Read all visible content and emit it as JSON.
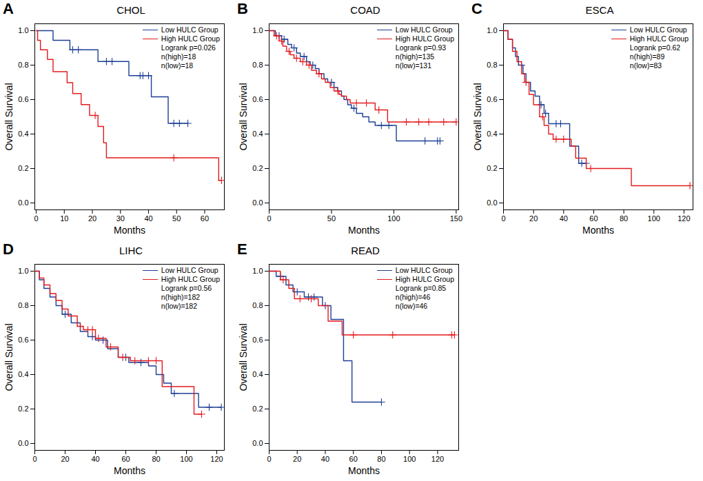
{
  "chart_data": [
    {
      "type": "line",
      "panel": "A",
      "title": "CHOL",
      "x_label": "Months",
      "y_label": "Overall Survival",
      "xlim": [
        -0.5,
        67
      ],
      "xticks": [
        0,
        10,
        20,
        30,
        40,
        50,
        60
      ],
      "ylim": [
        -0.04,
        1.04
      ],
      "yticks": [
        {
          "value": 0,
          "label": "0.0"
        },
        0.2,
        0.4,
        0.6,
        0.8,
        {
          "value": 1,
          "label": "1.0"
        }
      ],
      "legend": "topright",
      "marker": "plus",
      "line_style": "step",
      "annotations": [
        "Logrank p=0.026",
        "n(high)=18",
        "n(low)=18"
      ],
      "series": [
        {
          "name": "Low HULC Group",
          "color": "#1c3f95",
          "x": [
            0,
            6,
            12,
            22,
            33,
            41,
            47,
            54
          ],
          "values": [
            1,
            0.944,
            0.889,
            0.821,
            0.739,
            0.616,
            0.462,
            0.462
          ],
          "censored": [
            [
              13,
              0.889
            ],
            [
              15,
              0.889
            ],
            [
              25,
              0.821
            ],
            [
              27,
              0.821
            ],
            [
              37,
              0.739
            ],
            [
              38,
              0.739
            ],
            [
              40,
              0.739
            ],
            [
              49,
              0.462
            ],
            [
              51,
              0.462
            ],
            [
              54,
              0.462
            ]
          ]
        },
        {
          "name": "High HULC Group",
          "color": "#e41a1c",
          "x": [
            0,
            0.5,
            1.5,
            4,
            6,
            11,
            13,
            16,
            19,
            22,
            24,
            25,
            65,
            66
          ],
          "values": [
            1,
            0.944,
            0.889,
            0.833,
            0.762,
            0.698,
            0.635,
            0.571,
            0.508,
            0.444,
            0.349,
            0.262,
            0.131,
            0.131
          ],
          "censored": [
            [
              21,
              0.508
            ],
            [
              49,
              0.262
            ],
            [
              66,
              0.131
            ]
          ]
        }
      ]
    },
    {
      "type": "line",
      "panel": "B",
      "title": "COAD",
      "x_label": "Months",
      "y_label": "Overall Survival",
      "xlim": [
        0,
        152
      ],
      "xticks": [
        0,
        50,
        100,
        150
      ],
      "ylim": [
        -0.04,
        1.04
      ],
      "yticks": [
        {
          "value": 0,
          "label": "0.0"
        },
        0.2,
        0.4,
        0.6,
        0.8,
        {
          "value": 1,
          "label": "1.0"
        }
      ],
      "legend": "topright",
      "marker": "plus",
      "line_style": "step",
      "annotations": [
        "Logrank p=0.93",
        "n(high)=135",
        "n(low)=131"
      ],
      "series": [
        {
          "name": "Low HULC Group",
          "color": "#1c3f95",
          "x": [
            0,
            5,
            10,
            15,
            18,
            22,
            25,
            30,
            33,
            37,
            40,
            44,
            47,
            52,
            55,
            58,
            60,
            63,
            66,
            70,
            75,
            80,
            85,
            100,
            102,
            138
          ],
          "values": [
            1,
            0.97,
            0.95,
            0.92,
            0.9,
            0.87,
            0.85,
            0.82,
            0.8,
            0.78,
            0.75,
            0.72,
            0.7,
            0.67,
            0.65,
            0.62,
            0.6,
            0.57,
            0.55,
            0.52,
            0.5,
            0.47,
            0.45,
            0.45,
            0.36,
            0.36
          ],
          "censored": [
            [
              8,
              0.97
            ],
            [
              12,
              0.95
            ],
            [
              20,
              0.9
            ],
            [
              28,
              0.85
            ],
            [
              35,
              0.8
            ],
            [
              50,
              0.7
            ],
            [
              68,
              0.55
            ],
            [
              90,
              0.45
            ],
            [
              96,
              0.45
            ],
            [
              125,
              0.36
            ],
            [
              135,
              0.36
            ],
            [
              137,
              0.36
            ]
          ]
        },
        {
          "name": "High HULC Group",
          "color": "#e41a1c",
          "x": [
            0,
            4,
            8,
            11,
            14,
            17,
            20,
            25,
            30,
            34,
            38,
            42,
            45,
            49,
            52,
            56,
            58,
            62,
            65,
            85,
            95,
            150
          ],
          "values": [
            1,
            0.97,
            0.94,
            0.91,
            0.88,
            0.86,
            0.84,
            0.82,
            0.8,
            0.77,
            0.75,
            0.72,
            0.7,
            0.67,
            0.65,
            0.63,
            0.62,
            0.6,
            0.58,
            0.54,
            0.47,
            0.47
          ],
          "censored": [
            [
              6,
              0.97
            ],
            [
              10,
              0.94
            ],
            [
              16,
              0.88
            ],
            [
              22,
              0.84
            ],
            [
              27,
              0.82
            ],
            [
              32,
              0.8
            ],
            [
              40,
              0.75
            ],
            [
              55,
              0.65
            ],
            [
              70,
              0.58
            ],
            [
              78,
              0.58
            ],
            [
              88,
              0.54
            ],
            [
              110,
              0.47
            ],
            [
              120,
              0.47
            ],
            [
              128,
              0.47
            ],
            [
              140,
              0.47
            ],
            [
              150,
              0.47
            ]
          ]
        }
      ]
    },
    {
      "type": "line",
      "panel": "C",
      "title": "ESCA",
      "x_label": "Months",
      "y_label": "Overall Survival",
      "xlim": [
        0,
        126
      ],
      "xticks": [
        0,
        20,
        40,
        60,
        80,
        100,
        120
      ],
      "ylim": [
        -0.04,
        1.04
      ],
      "yticks": [
        {
          "value": 0,
          "label": "0.0"
        },
        0.2,
        0.4,
        0.6,
        0.8,
        {
          "value": 1,
          "label": "1.0"
        }
      ],
      "legend": "topright",
      "marker": "plus",
      "line_style": "step",
      "annotations": [
        "Logrank p=0.62",
        "n(high)=89",
        "n(low)=83"
      ],
      "series": [
        {
          "name": "Low HULC Group",
          "color": "#1c3f95",
          "x": [
            0,
            3,
            6,
            8,
            10,
            13,
            15,
            18,
            21,
            24,
            27,
            30,
            44,
            50,
            55
          ],
          "values": [
            1,
            0.95,
            0.9,
            0.85,
            0.8,
            0.75,
            0.7,
            0.65,
            0.62,
            0.57,
            0.52,
            0.46,
            0.33,
            0.23,
            0.23
          ],
          "censored": [
            [
              12,
              0.8
            ],
            [
              25,
              0.57
            ],
            [
              28,
              0.52
            ],
            [
              35,
              0.46
            ],
            [
              38,
              0.46
            ],
            [
              52,
              0.23
            ],
            [
              55,
              0.23
            ]
          ]
        },
        {
          "name": "High HULC Group",
          "color": "#e41a1c",
          "x": [
            0,
            3,
            6,
            9,
            12,
            14,
            17,
            20,
            24,
            27,
            30,
            33,
            45,
            48,
            55,
            85,
            124
          ],
          "values": [
            1,
            0.95,
            0.88,
            0.82,
            0.75,
            0.7,
            0.63,
            0.57,
            0.5,
            0.45,
            0.4,
            0.37,
            0.33,
            0.26,
            0.2,
            0.1,
            0.1
          ],
          "censored": [
            [
              15,
              0.7
            ],
            [
              26,
              0.5
            ],
            [
              35,
              0.37
            ],
            [
              40,
              0.37
            ],
            [
              58,
              0.2
            ],
            [
              124,
              0.1
            ]
          ]
        }
      ]
    },
    {
      "type": "line",
      "panel": "D",
      "title": "LIHC",
      "x_label": "Months",
      "y_label": "Overall Survival",
      "xlim": [
        0,
        125
      ],
      "xticks": [
        0,
        20,
        40,
        60,
        80,
        100,
        120
      ],
      "ylim": [
        -0.04,
        1.04
      ],
      "yticks": [
        {
          "value": 0,
          "label": "0.0"
        },
        0.2,
        0.4,
        0.6,
        0.8,
        {
          "value": 1,
          "label": "1.0"
        }
      ],
      "legend": "topright",
      "marker": "plus",
      "line_style": "step",
      "annotations": [
        "Logrank p=0.56",
        "n(high)=182",
        "n(low)=182"
      ],
      "series": [
        {
          "name": "Low HULC Group",
          "color": "#1c3f95",
          "x": [
            0,
            3,
            6,
            10,
            14,
            18,
            24,
            30,
            35,
            40,
            48,
            55,
            62,
            75,
            80,
            85,
            90,
            108,
            123
          ],
          "values": [
            1,
            0.95,
            0.9,
            0.85,
            0.8,
            0.75,
            0.7,
            0.65,
            0.62,
            0.6,
            0.55,
            0.5,
            0.47,
            0.45,
            0.4,
            0.35,
            0.29,
            0.21,
            0.21
          ],
          "censored": [
            [
              20,
              0.75
            ],
            [
              38,
              0.62
            ],
            [
              45,
              0.6
            ],
            [
              60,
              0.5
            ],
            [
              70,
              0.47
            ],
            [
              92,
              0.29
            ],
            [
              115,
              0.21
            ],
            [
              123,
              0.21
            ]
          ]
        },
        {
          "name": "High HULC Group",
          "color": "#e41a1c",
          "x": [
            0,
            3,
            6,
            10,
            14,
            18,
            22,
            28,
            32,
            40,
            47,
            55,
            63,
            84,
            105,
            110
          ],
          "values": [
            1,
            0.96,
            0.92,
            0.87,
            0.83,
            0.78,
            0.74,
            0.68,
            0.66,
            0.61,
            0.56,
            0.5,
            0.48,
            0.33,
            0.17,
            0.17
          ],
          "censored": [
            [
              30,
              0.68
            ],
            [
              35,
              0.66
            ],
            [
              38,
              0.66
            ],
            [
              42,
              0.61
            ],
            [
              50,
              0.56
            ],
            [
              58,
              0.5
            ],
            [
              66,
              0.48
            ],
            [
              75,
              0.48
            ],
            [
              80,
              0.48
            ],
            [
              110,
              0.17
            ]
          ]
        }
      ]
    },
    {
      "type": "line",
      "panel": "E",
      "title": "READ",
      "x_label": "Months",
      "y_label": "Overall Survival",
      "xlim": [
        0,
        135
      ],
      "xticks": [
        0,
        20,
        40,
        60,
        80,
        100,
        120
      ],
      "ylim": [
        -0.04,
        1.04
      ],
      "yticks": [
        {
          "value": 0,
          "label": "0.0"
        },
        0.2,
        0.4,
        0.6,
        0.8,
        {
          "value": 1,
          "label": "1.0"
        }
      ],
      "legend": "topright",
      "marker": "plus",
      "line_style": "step",
      "annotations": [
        "Logrank p=0.85",
        "n(high)=46",
        "n(low)=46"
      ],
      "series": [
        {
          "name": "Low HULC Group",
          "color": "#1c3f95",
          "x": [
            0,
            5,
            12,
            17,
            25,
            38,
            44,
            53,
            59,
            80
          ],
          "values": [
            1,
            0.97,
            0.92,
            0.88,
            0.85,
            0.8,
            0.72,
            0.48,
            0.24,
            0.24
          ],
          "censored": [
            [
              8,
              0.97
            ],
            [
              20,
              0.88
            ],
            [
              28,
              0.85
            ],
            [
              32,
              0.85
            ],
            [
              40,
              0.8
            ],
            [
              80,
              0.24
            ]
          ]
        },
        {
          "name": "High HULC Group",
          "color": "#e41a1c",
          "x": [
            0,
            8,
            14,
            18,
            35,
            42,
            52,
            132
          ],
          "values": [
            1,
            0.95,
            0.9,
            0.84,
            0.8,
            0.71,
            0.63,
            0.63
          ],
          "censored": [
            [
              10,
              0.95
            ],
            [
              22,
              0.84
            ],
            [
              30,
              0.84
            ],
            [
              60,
              0.63
            ],
            [
              88,
              0.63
            ],
            [
              130,
              0.63
            ],
            [
              132,
              0.63
            ]
          ]
        }
      ]
    }
  ]
}
